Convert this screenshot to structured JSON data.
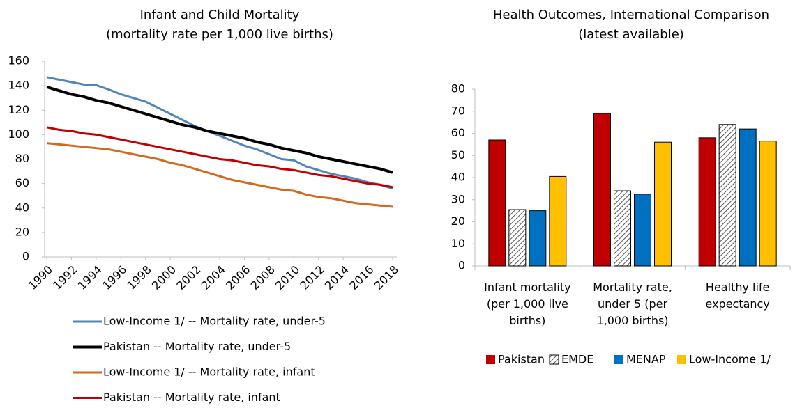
{
  "chart_data": [
    {
      "type": "line",
      "title": "Infant and Child Mortality",
      "subtitle": "(mortality rate per 1,000 live births)",
      "x": [
        1990,
        1991,
        1992,
        1993,
        1994,
        1995,
        1996,
        1997,
        1998,
        1999,
        2000,
        2001,
        2002,
        2003,
        2004,
        2005,
        2006,
        2007,
        2008,
        2009,
        2010,
        2011,
        2012,
        2013,
        2014,
        2015,
        2016,
        2017,
        2018
      ],
      "xlim": [
        1990,
        2018
      ],
      "xticks": [
        1990,
        1992,
        1994,
        1996,
        1998,
        2000,
        2002,
        2004,
        2006,
        2008,
        2010,
        2012,
        2014,
        2016,
        2018
      ],
      "ylim": [
        0,
        160
      ],
      "yticks": [
        0,
        20,
        40,
        60,
        80,
        100,
        120,
        140,
        160
      ],
      "series": [
        {
          "name": "Low-Income 1/ -- Mortality rate, under-5",
          "color": "#4f86b8",
          "values": [
            147,
            145,
            143,
            141,
            140.5,
            137,
            133,
            130,
            127,
            122,
            117,
            112,
            107,
            103,
            99,
            95,
            91,
            88,
            84,
            80,
            79,
            74,
            71,
            68,
            66,
            64,
            61,
            59,
            56
          ]
        },
        {
          "name": "Pakistan -- Mortality rate, under-5",
          "color": "#000000",
          "values": [
            139,
            136,
            133,
            131,
            128,
            126,
            123,
            120,
            117,
            114,
            111,
            108,
            106,
            103,
            101,
            99,
            97,
            94,
            92,
            89,
            87,
            85,
            82,
            80,
            78,
            76,
            74,
            72,
            69
          ]
        },
        {
          "name": "Low-Income 1/ -- Mortality rate, infant",
          "color": "#d2691e",
          "values": [
            93,
            92,
            91,
            90,
            89,
            88,
            86,
            84,
            82,
            80,
            77,
            75,
            72,
            69,
            66,
            63,
            61,
            59,
            57,
            55,
            54,
            51,
            49,
            48,
            46,
            44,
            43,
            42,
            41
          ]
        },
        {
          "name": "Pakistan -- Mortality rate, infant",
          "color": "#c00000",
          "values": [
            106,
            104,
            103,
            101,
            100,
            98,
            96,
            94,
            92,
            90,
            88,
            86,
            84,
            82,
            80,
            79,
            77,
            75,
            74,
            72,
            71,
            69,
            67,
            66,
            64,
            62,
            60,
            59,
            57
          ]
        }
      ]
    },
    {
      "type": "bar",
      "title": "Health Outcomes, International Comparison",
      "subtitle": "(latest available)",
      "categories": [
        "Infant mortality (per 1,000 live births)",
        "Mortality rate, under 5 (per 1,000 births)",
        "Healthy life expectancy"
      ],
      "ylim": [
        0,
        80
      ],
      "yticks": [
        0,
        10,
        20,
        30,
        40,
        50,
        60,
        70,
        80
      ],
      "series": [
        {
          "name": "Pakistan",
          "color": "#c00000",
          "values": [
            57,
            69,
            58
          ]
        },
        {
          "name": "EMDE",
          "color": "#ffffff",
          "pattern": "hatch",
          "values": [
            25.5,
            34,
            64
          ]
        },
        {
          "name": "MENAP",
          "color": "#0070c0",
          "values": [
            25,
            32.5,
            62
          ]
        },
        {
          "name": "Low-Income 1/",
          "color": "#ffc000",
          "values": [
            40.5,
            56,
            56.5
          ]
        }
      ]
    }
  ]
}
